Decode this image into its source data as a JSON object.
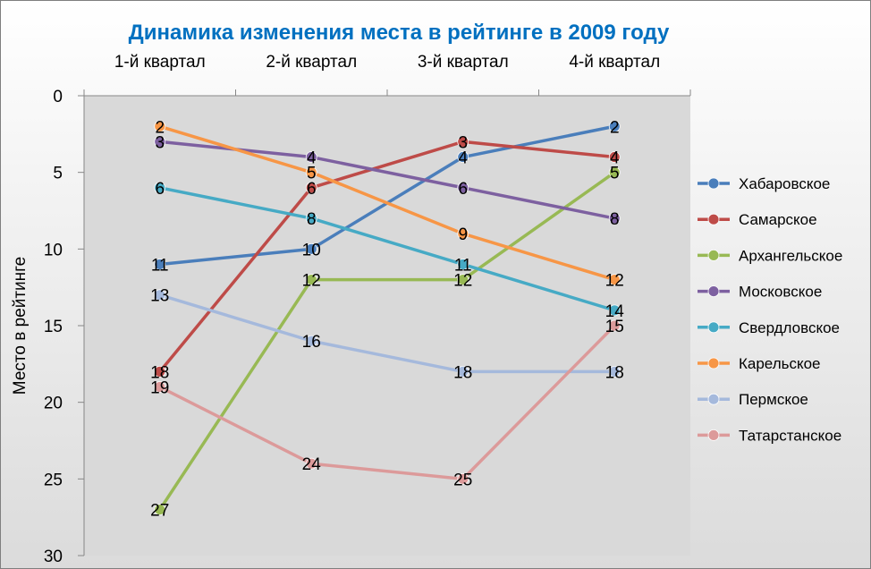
{
  "chart_data": {
    "type": "line",
    "title": "Динамика изменения места в рейтинге в 2009 году",
    "ylabel": "Место в рейтинге",
    "xlabel": "",
    "categories": [
      "1-й квартал",
      "2-й квартал",
      "3-й квартал",
      "4-й квартал"
    ],
    "ylim": [
      0,
      30
    ],
    "y_reversed": true,
    "y_ticks": [
      0,
      5,
      10,
      15,
      20,
      25,
      30
    ],
    "grid": false,
    "legend_position": "right",
    "data_labels": true,
    "series": [
      {
        "name": "Хабаровское",
        "color": "#4a7ebb",
        "values": [
          11,
          10,
          4,
          2
        ]
      },
      {
        "name": "Самарское",
        "color": "#be4b48",
        "values": [
          18,
          6,
          3,
          4
        ]
      },
      {
        "name": "Архангельское",
        "color": "#98b954",
        "values": [
          27,
          12,
          12,
          5
        ]
      },
      {
        "name": "Московское",
        "color": "#7d60a0",
        "values": [
          3,
          4,
          6,
          8
        ]
      },
      {
        "name": "Свердловское",
        "color": "#46aac5",
        "values": [
          6,
          8,
          11,
          14
        ]
      },
      {
        "name": "Карельское",
        "color": "#f79646",
        "values": [
          2,
          5,
          9,
          12
        ]
      },
      {
        "name": "Пермское",
        "color": "#a5b9dc",
        "values": [
          13,
          16,
          18,
          18
        ]
      },
      {
        "name": "Татарстанское",
        "color": "#dc9a9a",
        "values": [
          19,
          24,
          25,
          15
        ]
      }
    ]
  }
}
